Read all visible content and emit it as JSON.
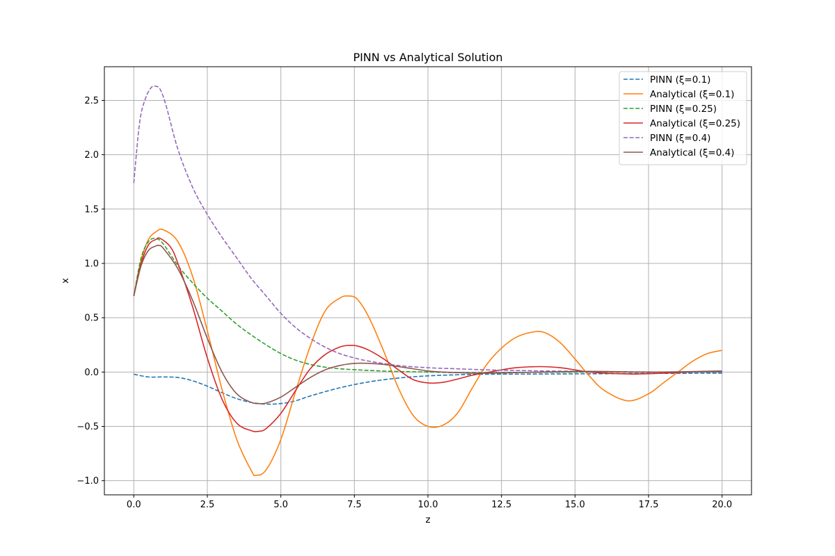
{
  "chart_data": {
    "type": "line",
    "title": "PINN vs Analytical Solution",
    "xlabel": "z",
    "ylabel": "x",
    "xlim": [
      -1.0,
      21.0
    ],
    "ylim": [
      -1.13,
      2.81
    ],
    "xticks": [
      0.0,
      2.5,
      5.0,
      7.5,
      10.0,
      12.5,
      15.0,
      17.5,
      20.0
    ],
    "xtick_labels": [
      "0.0",
      "2.5",
      "5.0",
      "7.5",
      "10.0",
      "12.5",
      "15.0",
      "17.5",
      "20.0"
    ],
    "yticks": [
      -1.0,
      -0.5,
      0.0,
      0.5,
      1.0,
      1.5,
      2.0,
      2.5
    ],
    "ytick_labels": [
      "−1.0",
      "−0.5",
      "0.0",
      "0.5",
      "1.0",
      "1.5",
      "2.0",
      "2.5"
    ],
    "grid": true,
    "legend_position": "top-right",
    "series": [
      {
        "name": "PINN (ξ=0.1)",
        "color": "#1f77b4",
        "dashed": true,
        "x": [
          0,
          0.5,
          1,
          1.5,
          2,
          2.5,
          3,
          3.5,
          4,
          4.5,
          5,
          5.5,
          6,
          7,
          8,
          9,
          10,
          11,
          12,
          14,
          16,
          18,
          20
        ],
        "y": [
          -0.02,
          -0.045,
          -0.045,
          -0.05,
          -0.08,
          -0.13,
          -0.19,
          -0.245,
          -0.28,
          -0.295,
          -0.29,
          -0.265,
          -0.22,
          -0.145,
          -0.09,
          -0.055,
          -0.035,
          -0.025,
          -0.02,
          -0.018,
          -0.015,
          -0.012,
          -0.01
        ]
      },
      {
        "name": "Analytical (ξ=0.1)",
        "color": "#ff7f0e",
        "dashed": false,
        "x": [
          0,
          0.25,
          0.5,
          0.75,
          1,
          1.5,
          2,
          2.5,
          3,
          3.5,
          4,
          4.15,
          4.5,
          5,
          5.5,
          6,
          6.5,
          7,
          7.3,
          7.6,
          8,
          8.5,
          9,
          9.5,
          10,
          10.5,
          11,
          11.5,
          12,
          12.5,
          13,
          13.6,
          14,
          14.5,
          15,
          15.5,
          16,
          16.8,
          17.5,
          18,
          18.5,
          19,
          19.5,
          20
        ],
        "y": [
          0.7,
          1.03,
          1.22,
          1.29,
          1.31,
          1.2,
          0.88,
          0.38,
          -0.16,
          -0.62,
          -0.91,
          -0.95,
          -0.9,
          -0.62,
          -0.18,
          0.24,
          0.56,
          0.68,
          0.7,
          0.67,
          0.5,
          0.19,
          -0.15,
          -0.4,
          -0.5,
          -0.49,
          -0.38,
          -0.15,
          0.07,
          0.22,
          0.32,
          0.37,
          0.36,
          0.27,
          0.12,
          -0.04,
          -0.17,
          -0.265,
          -0.2,
          -0.1,
          0.0,
          0.1,
          0.17,
          0.2
        ]
      },
      {
        "name": "PINN (ξ=0.25)",
        "color": "#2ca02c",
        "dashed": true,
        "x": [
          0,
          0.25,
          0.5,
          0.75,
          1,
          1.5,
          2,
          2.5,
          3,
          3.5,
          4,
          4.5,
          5,
          5.5,
          6,
          6.5,
          7,
          8,
          9,
          10,
          11,
          12,
          14,
          16,
          18,
          20
        ],
        "y": [
          0.7,
          1.05,
          1.2,
          1.23,
          1.18,
          0.98,
          0.82,
          0.68,
          0.56,
          0.44,
          0.34,
          0.25,
          0.17,
          0.11,
          0.07,
          0.045,
          0.03,
          0.015,
          0.005,
          0.0,
          -0.005,
          -0.005,
          -0.002,
          0.0,
          0.0,
          0.0
        ]
      },
      {
        "name": "Analytical (ξ=0.25)",
        "color": "#d62728",
        "dashed": false,
        "x": [
          0,
          0.25,
          0.5,
          0.75,
          0.9,
          1.25,
          1.5,
          2,
          2.5,
          3,
          3.5,
          4,
          4.25,
          4.5,
          5,
          5.5,
          6,
          6.5,
          7,
          7.3,
          7.6,
          8,
          8.5,
          9,
          9.5,
          10,
          10.5,
          11,
          11.5,
          12,
          12.5,
          13,
          13.8,
          14.5,
          15,
          15.5,
          16,
          16.5,
          17,
          17.5,
          18,
          18.5,
          19,
          20
        ],
        "y": [
          0.7,
          1.0,
          1.17,
          1.22,
          1.23,
          1.15,
          1.0,
          0.6,
          0.13,
          -0.25,
          -0.47,
          -0.54,
          -0.545,
          -0.52,
          -0.38,
          -0.17,
          0.03,
          0.16,
          0.23,
          0.245,
          0.24,
          0.2,
          0.12,
          0.02,
          -0.07,
          -0.1,
          -0.095,
          -0.065,
          -0.03,
          -0.005,
          0.02,
          0.04,
          0.05,
          0.04,
          0.02,
          0.0,
          -0.01,
          -0.015,
          -0.018,
          -0.015,
          -0.01,
          -0.005,
          0.0,
          0.01
        ]
      },
      {
        "name": "PINN (ξ=0.4)",
        "color": "#9467bd",
        "dashed": true,
        "x": [
          0,
          0.2,
          0.4,
          0.6,
          0.75,
          0.9,
          1.1,
          1.5,
          2,
          2.5,
          3,
          3.5,
          4,
          4.5,
          5,
          5.5,
          6,
          6.5,
          7,
          7.5,
          8,
          9,
          10,
          11,
          12,
          13,
          14,
          16,
          18,
          20
        ],
        "y": [
          1.74,
          2.3,
          2.52,
          2.62,
          2.63,
          2.6,
          2.45,
          2.05,
          1.7,
          1.45,
          1.24,
          1.05,
          0.86,
          0.7,
          0.54,
          0.41,
          0.31,
          0.23,
          0.17,
          0.13,
          0.1,
          0.06,
          0.04,
          0.03,
          0.02,
          0.015,
          0.01,
          0.005,
          0.0,
          0.0
        ]
      },
      {
        "name": "Analytical (ξ=0.4)",
        "color": "#8c564b",
        "dashed": false,
        "x": [
          0,
          0.25,
          0.5,
          0.75,
          0.85,
          1,
          1.5,
          2,
          2.5,
          3,
          3.5,
          4,
          4.25,
          4.5,
          5,
          5.5,
          6,
          6.5,
          7,
          7.5,
          8,
          8.5,
          9,
          9.5,
          10,
          10.5,
          11,
          11.5,
          12,
          13,
          14,
          15,
          16,
          17,
          18,
          20
        ],
        "y": [
          0.7,
          0.98,
          1.12,
          1.16,
          1.165,
          1.14,
          0.95,
          0.66,
          0.31,
          0.0,
          -0.2,
          -0.28,
          -0.29,
          -0.285,
          -0.23,
          -0.14,
          -0.05,
          0.02,
          0.06,
          0.08,
          0.08,
          0.07,
          0.05,
          0.03,
          0.01,
          0.0,
          -0.005,
          -0.01,
          -0.01,
          -0.005,
          0.0,
          0.005,
          0.005,
          0.0,
          0.0,
          0.01
        ]
      }
    ]
  }
}
